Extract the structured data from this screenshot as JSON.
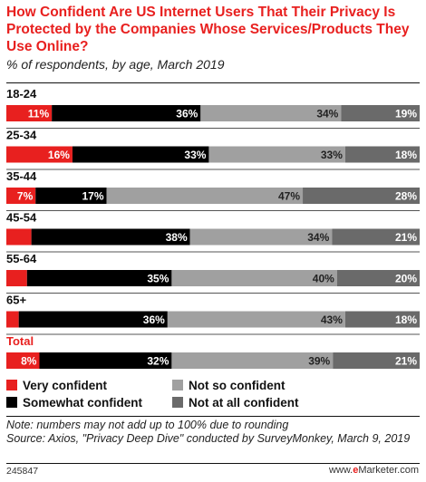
{
  "title": "How Confident Are US Internet Users That Their Privacy Is Protected by the Companies Whose Services/Products They Use Online?",
  "subtitle": "% of respondents, by age, March 2019",
  "note": "Note: numbers may not add up to 100% due to rounding",
  "source": "Source: Axios, \"Privacy Deep Dive\" conducted by SurveyMonkey, March 9, 2019",
  "chart_id": "245847",
  "brand": {
    "prefix": "www.",
    "e": "e",
    "name": "Marketer",
    "suffix": ".com"
  },
  "colors": {
    "title": "#e8201f",
    "very_confident": "#e8201f",
    "somewhat_confident": "#000000",
    "not_so_confident": "#a0a0a0",
    "not_at_all_confident": "#6a6a6a"
  },
  "chart_data": {
    "type": "bar",
    "orientation": "horizontal",
    "stacked": true,
    "categories": [
      "18-24",
      "25-34",
      "35-44",
      "45-54",
      "55-64",
      "65+",
      "Total"
    ],
    "series": [
      {
        "name": "Very confident",
        "color": "#e8201f",
        "values": [
          11,
          16,
          7,
          6,
          5,
          3,
          8
        ]
      },
      {
        "name": "Somewhat confident",
        "color": "#000000",
        "values": [
          36,
          33,
          17,
          38,
          35,
          36,
          32
        ]
      },
      {
        "name": "Not so confident",
        "color": "#a0a0a0",
        "values": [
          34,
          33,
          47,
          34,
          40,
          43,
          39
        ]
      },
      {
        "name": "Not at all confident",
        "color": "#6a6a6a",
        "values": [
          19,
          18,
          28,
          21,
          20,
          18,
          21
        ]
      }
    ],
    "value_suffix": "%",
    "legend_position": "bottom",
    "grid": false
  }
}
